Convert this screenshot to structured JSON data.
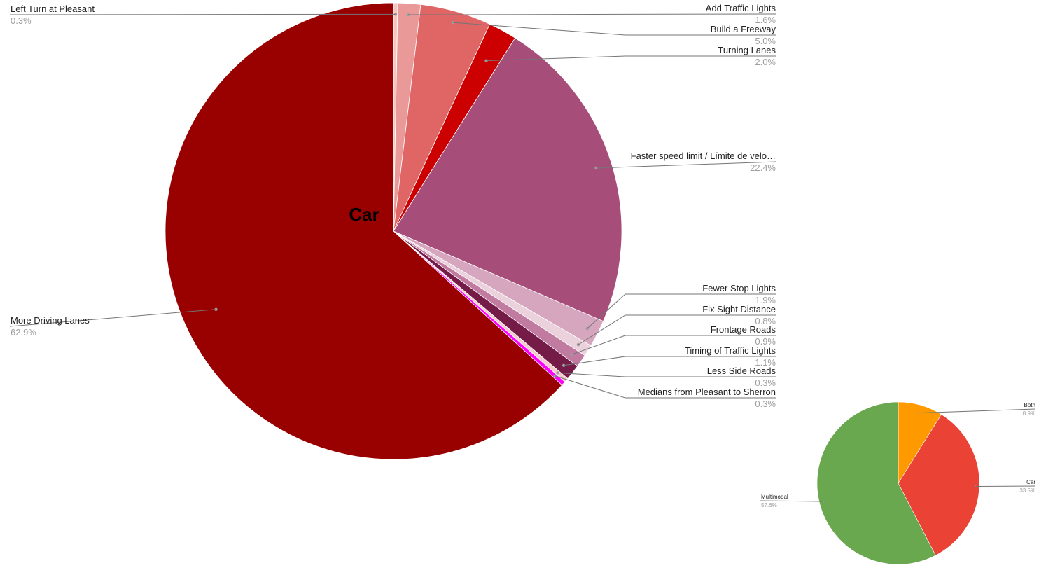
{
  "chart_data": [
    {
      "type": "pie",
      "title": "Car",
      "colors": [
        "#f4c7c3",
        "#ea9999",
        "#e06666",
        "#cc0000",
        "#a64d79",
        "#d5a6bd",
        "#ead1dc",
        "#c27ba0",
        "#741b47",
        "#f4cccc",
        "#ff00ff",
        "#990000"
      ],
      "slices": [
        {
          "label": "Left Turn at Pleasant",
          "value": 0.3,
          "value_label": "0.3%"
        },
        {
          "label": "Add Traffic Lights",
          "value": 1.6,
          "value_label": "1.6%"
        },
        {
          "label": "Build a Freeway",
          "value": 5.0,
          "value_label": "5.0%"
        },
        {
          "label": "Turning Lanes",
          "value": 2.0,
          "value_label": "2.0%"
        },
        {
          "label": "Faster speed limit / Límite de velo…",
          "value": 22.4,
          "value_label": "22.4%"
        },
        {
          "label": "Fewer Stop Lights",
          "value": 1.9,
          "value_label": "1.9%"
        },
        {
          "label": "Fix Sight Distance",
          "value": 0.8,
          "value_label": "0.8%"
        },
        {
          "label": "Frontage Roads",
          "value": 0.9,
          "value_label": "0.9%"
        },
        {
          "label": "Timing of Traffic Lights",
          "value": 1.1,
          "value_label": "1.1%"
        },
        {
          "label": "Less Side Roads",
          "value": 0.3,
          "value_label": "0.3%"
        },
        {
          "label": "Medians from Pleasant to Sherron",
          "value": 0.3,
          "value_label": "0.3%"
        },
        {
          "label": "More Driving Lanes",
          "value": 62.9,
          "value_label": "62.9%"
        }
      ]
    },
    {
      "type": "pie",
      "title": "",
      "colors": [
        "#ff9900",
        "#ea4335",
        "#6aa84f"
      ],
      "slices": [
        {
          "label": "Both",
          "value": 8.9,
          "value_label": "8.9%"
        },
        {
          "label": "Car",
          "value": 33.5,
          "value_label": "33.5%"
        },
        {
          "label": "Multimodal",
          "value": 57.6,
          "value_label": "57.6%"
        }
      ]
    }
  ]
}
